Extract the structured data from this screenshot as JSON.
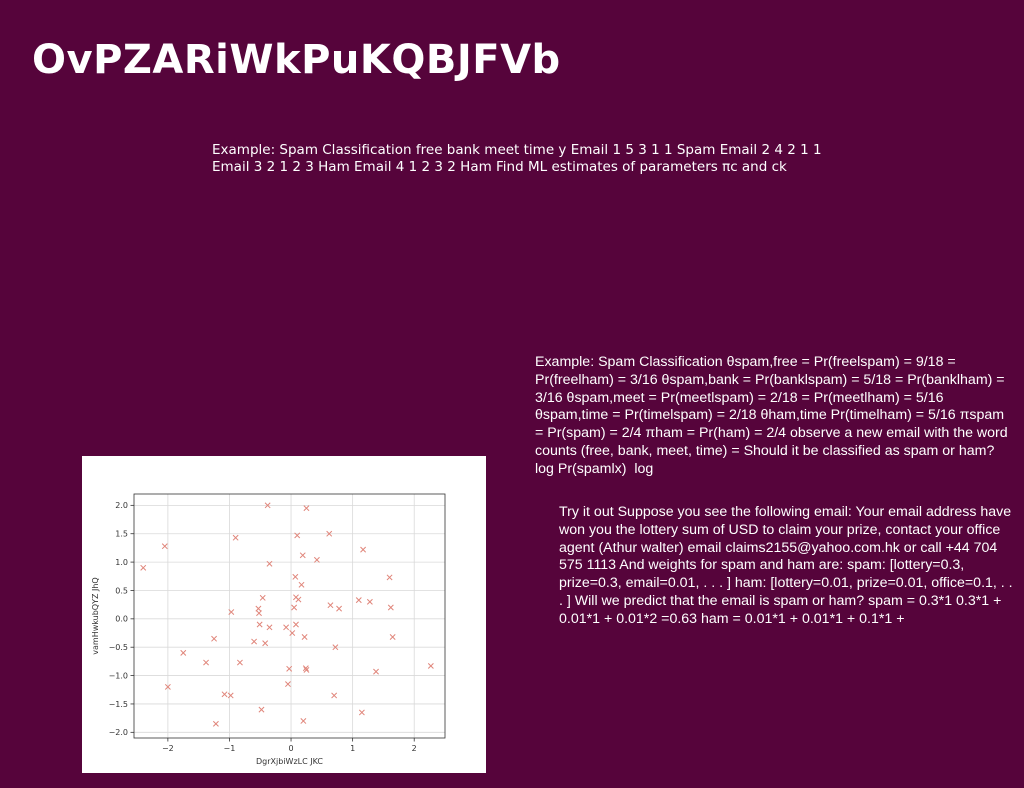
{
  "slide": {
    "title": "OvPZARiWkPuKQBJFVb",
    "paragraph_1": "Example: Spam Classification free bank meet time y Email 1 5 3 1 1 Spam Email 2 4 2 1 1 Email 3 2 1 2 3 Ham Email 4 1 2 3 2 Ham Find ML estimates of parameters πc and \u001fck",
    "paragraph_2": "Example: Spam Classification θspam,free = Pr(freelspam) = 9/18 = Pr(freelham) = 3/16 θspam,bank = Pr(banklspam) = 5/18 = Pr(banklham) = 3/16 θspam,meet = Pr(meetlspam) = 2/18 = Pr(meetlham) = 5/16 θspam,time = Pr(timelspam) = 2/18 θham,time Pr(timelham) = 5/16 πspam = Pr(spam) = 2/4 πham = Pr(ham) = 2/4 observe a new email with the word counts (free, bank, meet, time) = Should it be classified as spam or ham? log Pr(spamlx) \u001f log",
    "paragraph_3": "Try it out Suppose you see the following email: Your email address have won you the lottery sum of USD to claim your prize, contact your office agent (Athur walter) email claims2155@yahoo.com.hk or call +44 704 575 1113 And weights for spam and ham are: spam: [lottery=0.3, prize=0.3, email=0.01, . . . ] ham: [lottery=0.01, prize=0.01, office=0.1, . . . ] Will we predict that the email is spam or ham? spam = 0.3*1 0.3*1 + 0.01*1 + 0.01*2 =0.63 ham = 0.01*1 + 0.01*1 + 0.1*1 +"
  },
  "chart_data": {
    "type": "scatter",
    "xlabel": "DgrXjbiWzLC JKC",
    "ylabel": "vamHwkubQYZ JhQ",
    "xlim": [
      -2.55,
      2.5
    ],
    "ylim": [
      -2.1,
      2.2
    ],
    "xticks": [
      -2,
      -1,
      0,
      1,
      2
    ],
    "xtick_labels": [
      "−2",
      "−1",
      "0",
      "1",
      "2"
    ],
    "yticks": [
      -2.0,
      -1.5,
      -1.0,
      -0.5,
      0.0,
      0.5,
      1.0,
      1.5,
      2.0
    ],
    "ytick_labels": [
      "−2.0",
      "−1.5",
      "−1.0",
      "−0.5",
      "0.0",
      "0.5",
      "1.0",
      "1.5",
      "2.0"
    ],
    "grid": true,
    "marker": "x",
    "color": "#e0857a",
    "points": [
      [
        -2.4,
        0.9
      ],
      [
        -2.05,
        1.28
      ],
      [
        -2.0,
        -1.2
      ],
      [
        -1.75,
        -0.6
      ],
      [
        -1.38,
        -0.77
      ],
      [
        -1.25,
        -0.35
      ],
      [
        -1.22,
        -1.85
      ],
      [
        -1.08,
        -1.33
      ],
      [
        -0.98,
        -1.35
      ],
      [
        -0.97,
        0.12
      ],
      [
        -0.9,
        1.43
      ],
      [
        -0.83,
        -0.77
      ],
      [
        -0.6,
        -0.4
      ],
      [
        -0.53,
        0.18
      ],
      [
        -0.52,
        0.1
      ],
      [
        -0.51,
        -0.1
      ],
      [
        -0.48,
        -1.6
      ],
      [
        -0.46,
        0.37
      ],
      [
        -0.42,
        -0.43
      ],
      [
        -0.38,
        2.0
      ],
      [
        -0.35,
        0.97
      ],
      [
        -0.35,
        -0.15
      ],
      [
        -0.08,
        -0.15
      ],
      [
        -0.05,
        -1.15
      ],
      [
        -0.03,
        -0.88
      ],
      [
        0.02,
        -0.25
      ],
      [
        0.05,
        0.2
      ],
      [
        0.07,
        0.74
      ],
      [
        0.08,
        0.38
      ],
      [
        0.08,
        -0.1
      ],
      [
        0.1,
        1.47
      ],
      [
        0.12,
        0.34
      ],
      [
        0.17,
        0.6
      ],
      [
        0.19,
        1.12
      ],
      [
        0.2,
        -1.8
      ],
      [
        0.22,
        -0.32
      ],
      [
        0.24,
        -0.87
      ],
      [
        0.25,
        -0.9
      ],
      [
        0.25,
        1.95
      ],
      [
        0.42,
        1.04
      ],
      [
        0.62,
        1.5
      ],
      [
        0.64,
        0.24
      ],
      [
        0.7,
        -1.35
      ],
      [
        0.72,
        -0.5
      ],
      [
        0.78,
        0.18
      ],
      [
        1.1,
        0.33
      ],
      [
        1.15,
        -1.65
      ],
      [
        1.17,
        1.22
      ],
      [
        1.28,
        0.3
      ],
      [
        1.38,
        -0.93
      ],
      [
        1.6,
        0.73
      ],
      [
        1.62,
        0.2
      ],
      [
        1.65,
        -0.32
      ],
      [
        2.27,
        -0.83
      ]
    ]
  }
}
